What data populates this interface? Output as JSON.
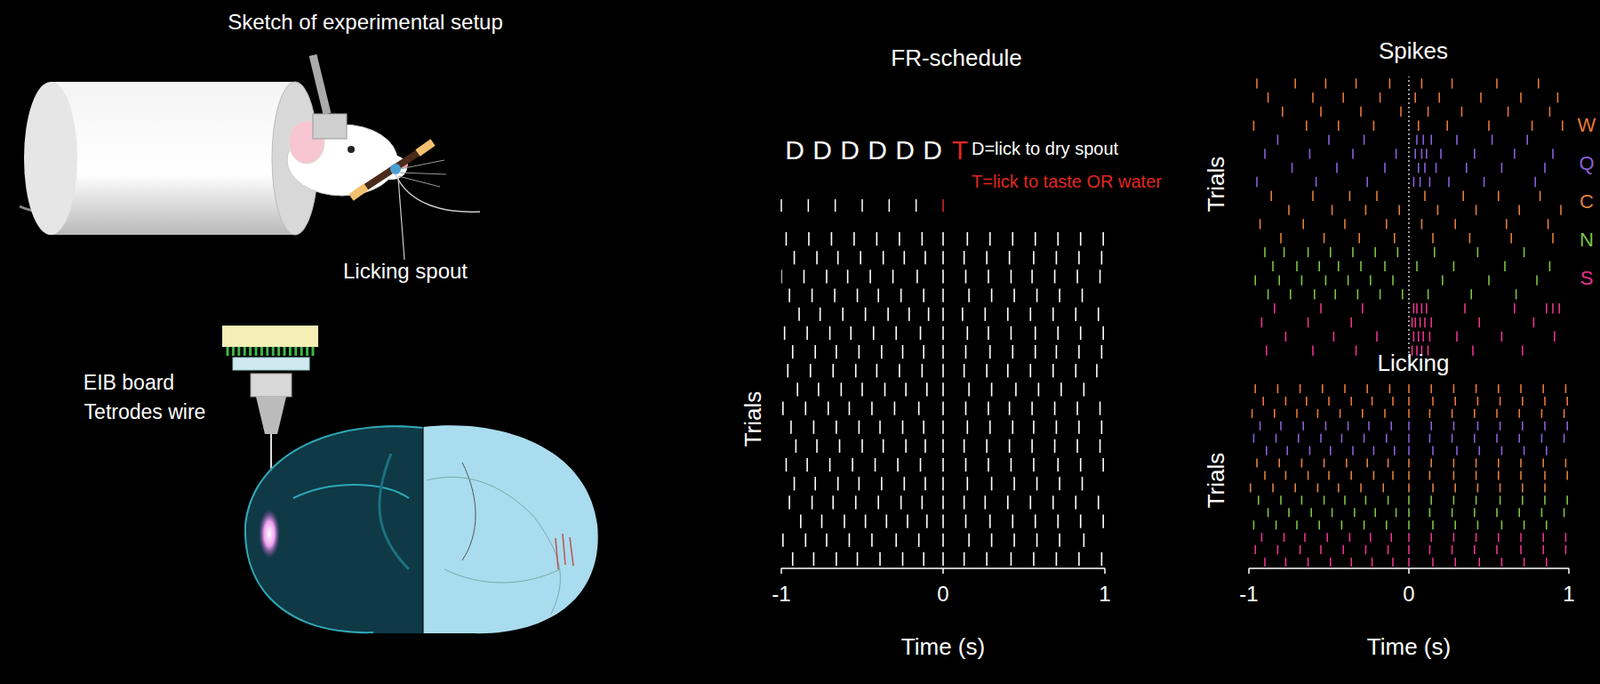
{
  "sketch": {
    "title": "Sketch of experimental setup",
    "labels": [
      "Licking spout",
      "EIB board",
      "Tetrodes wire"
    ]
  },
  "chart_data": [
    {
      "type": "raster",
      "title": "FR-schedule",
      "xlabel": "Time (s)",
      "ylabel": "Trials",
      "xlim": [
        -1,
        1
      ],
      "xticks": [
        -1,
        0,
        1
      ],
      "ylim": [
        0,
        18
      ],
      "tick_labels": "x",
      "color": "#ffffff",
      "schedule": {
        "sequence": [
          "D",
          "D",
          "D",
          "D",
          "D",
          "D",
          "T"
        ],
        "colors": [
          "#ffffff",
          "#ffffff",
          "#ffffff",
          "#ffffff",
          "#ffffff",
          "#ffffff",
          "#e0271f"
        ]
      },
      "annotations": [
        {
          "text": "D=lick to dry spout",
          "color": "#ffffff"
        },
        {
          "text": "T=lick to taste OR water",
          "color": "#e0271f"
        }
      ],
      "trials": [
        [
          -0.97,
          -0.83,
          -0.69,
          -0.55,
          -0.41,
          -0.27,
          -0.13,
          0,
          0.15,
          0.29,
          0.43,
          0.57,
          0.71,
          0.85,
          0.99
        ],
        [
          -0.92,
          -0.78,
          -0.65,
          -0.51,
          -0.37,
          -0.24,
          -0.11,
          0,
          0.13,
          0.27,
          0.41,
          0.56,
          0.7,
          0.84,
          0.98
        ],
        [
          -1.0,
          -0.86,
          -0.72,
          -0.59,
          -0.45,
          -0.31,
          -0.16,
          0,
          0.14,
          0.28,
          0.42,
          0.55,
          0.69,
          0.83,
          0.97
        ],
        [
          -0.95,
          -0.81,
          -0.67,
          -0.53,
          -0.4,
          -0.26,
          -0.12,
          0,
          0.16,
          0.3,
          0.44,
          0.58,
          0.72,
          0.86
        ],
        [
          -0.89,
          -0.76,
          -0.62,
          -0.48,
          -0.34,
          -0.21,
          -0.09,
          0,
          0.12,
          0.26,
          0.4,
          0.54,
          0.68,
          0.82,
          0.96
        ],
        [
          -0.98,
          -0.84,
          -0.7,
          -0.57,
          -0.43,
          -0.29,
          -0.14,
          0,
          0.15,
          0.28,
          0.42,
          0.57,
          0.71,
          0.85,
          0.99
        ],
        [
          -0.93,
          -0.79,
          -0.66,
          -0.52,
          -0.38,
          -0.25,
          -0.12,
          0,
          0.14,
          0.29,
          0.43,
          0.57,
          0.7,
          0.84,
          0.98
        ],
        [
          -0.96,
          -0.82,
          -0.68,
          -0.54,
          -0.41,
          -0.27,
          -0.13,
          0,
          0.13,
          0.27,
          0.4,
          0.54,
          0.68,
          0.82,
          0.95
        ],
        [
          -0.9,
          -0.77,
          -0.63,
          -0.5,
          -0.36,
          -0.23,
          -0.1,
          0,
          0.16,
          0.3,
          0.45,
          0.59,
          0.73,
          0.87
        ],
        [
          -0.99,
          -0.85,
          -0.71,
          -0.58,
          -0.44,
          -0.3,
          -0.15,
          0,
          0.14,
          0.28,
          0.41,
          0.55,
          0.69,
          0.83,
          0.97
        ],
        [
          -0.94,
          -0.8,
          -0.66,
          -0.52,
          -0.39,
          -0.25,
          -0.12,
          0,
          0.15,
          0.29,
          0.43,
          0.56,
          0.7,
          0.84,
          0.98
        ],
        [
          -0.91,
          -0.78,
          -0.64,
          -0.5,
          -0.37,
          -0.23,
          -0.11,
          0,
          0.13,
          0.27,
          0.41,
          0.55,
          0.69,
          0.83,
          0.97
        ],
        [
          -0.97,
          -0.84,
          -0.7,
          -0.56,
          -0.42,
          -0.28,
          -0.14,
          0,
          0.14,
          0.28,
          0.42,
          0.56,
          0.71,
          0.85,
          0.99
        ],
        [
          -0.92,
          -0.79,
          -0.65,
          -0.52,
          -0.38,
          -0.24,
          -0.11,
          0,
          0.15,
          0.3,
          0.44,
          0.58,
          0.72,
          0.86
        ],
        [
          -0.95,
          -0.81,
          -0.68,
          -0.54,
          -0.4,
          -0.26,
          -0.13,
          0,
          0.13,
          0.26,
          0.4,
          0.54,
          0.68,
          0.82,
          0.96
        ],
        [
          -0.88,
          -0.75,
          -0.61,
          -0.48,
          -0.35,
          -0.22,
          -0.1,
          0,
          0.14,
          0.29,
          0.43,
          0.57,
          0.71,
          0.85,
          0.99
        ],
        [
          -0.99,
          -0.85,
          -0.72,
          -0.58,
          -0.44,
          -0.29,
          -0.15,
          0,
          0.16,
          0.3,
          0.44,
          0.58,
          0.72,
          0.87
        ],
        [
          -0.93,
          -0.8,
          -0.66,
          -0.53,
          -0.39,
          -0.25,
          -0.12,
          0,
          0.13,
          0.27,
          0.42,
          0.56,
          0.7,
          0.84,
          0.98
        ]
      ]
    },
    {
      "type": "raster",
      "title": "Spikes",
      "ylabel": "Trials",
      "xlim": [
        -1,
        1
      ],
      "ylim": [
        0,
        20
      ],
      "tick_labels": false,
      "legend": "right",
      "event_time": 0,
      "series": [
        {
          "name": "W",
          "color": "#e8773a",
          "trials": [
            [
              -0.95,
              -0.71,
              -0.52,
              -0.33,
              -0.12,
              0.08,
              0.27,
              0.55,
              0.81
            ],
            [
              -0.88,
              -0.6,
              -0.41,
              -0.18,
              0.04,
              0.19,
              0.45,
              0.7,
              0.93
            ],
            [
              -0.79,
              -0.55,
              -0.3,
              -0.05,
              0.12,
              0.33,
              0.62,
              0.88
            ],
            [
              -0.97,
              -0.64,
              -0.44,
              -0.22,
              0.06,
              0.24,
              0.5,
              0.77,
              0.96
            ]
          ]
        },
        {
          "name": "Q",
          "color": "#8b5fd8",
          "trials": [
            [
              -0.82,
              -0.5,
              -0.28,
              0.05,
              0.09,
              0.14,
              0.3,
              0.52,
              0.74
            ],
            [
              -0.9,
              -0.62,
              -0.35,
              -0.08,
              0.04,
              0.08,
              0.11,
              0.2,
              0.41,
              0.66,
              0.9
            ],
            [
              -0.73,
              -0.45,
              -0.15,
              0.06,
              0.1,
              0.17,
              0.36,
              0.58,
              0.85
            ],
            [
              -0.95,
              -0.58,
              -0.26,
              0.03,
              0.07,
              0.13,
              0.25,
              0.47,
              0.79
            ]
          ]
        },
        {
          "name": "C",
          "color": "#e07f3c",
          "trials": [
            [
              -0.86,
              -0.6,
              -0.37,
              -0.2,
              0.1,
              0.34,
              0.56,
              0.82
            ],
            [
              -0.75,
              -0.48,
              -0.27,
              -0.06,
              0.18,
              0.42,
              0.69,
              0.95
            ],
            [
              -0.93,
              -0.66,
              -0.4,
              -0.14,
              0.08,
              0.29,
              0.61,
              0.87
            ],
            [
              -0.8,
              -0.53,
              -0.31,
              -0.09,
              0.15,
              0.38,
              0.64,
              0.9
            ]
          ]
        },
        {
          "name": "N",
          "color": "#7dc243",
          "trials": [
            [
              -0.9,
              -0.78,
              -0.63,
              -0.49,
              -0.35,
              -0.21,
              -0.07,
              0.16,
              0.43,
              0.72
            ],
            [
              -0.85,
              -0.7,
              -0.56,
              -0.44,
              -0.3,
              -0.15,
              0.05,
              0.28,
              0.6,
              0.88
            ],
            [
              -0.96,
              -0.81,
              -0.67,
              -0.52,
              -0.38,
              -0.24,
              -0.1,
              0.21,
              0.5,
              0.8
            ],
            [
              -0.88,
              -0.74,
              -0.59,
              -0.46,
              -0.32,
              -0.18,
              -0.04,
              0.12,
              0.39,
              0.67
            ]
          ]
        },
        {
          "name": "S",
          "color": "#e8338f",
          "trials": [
            [
              -0.84,
              -0.55,
              -0.29,
              0.03,
              0.05,
              0.08,
              0.11,
              0.35,
              0.66,
              0.86,
              0.9,
              0.94
            ],
            [
              -0.92,
              -0.63,
              -0.36,
              0.02,
              0.04,
              0.07,
              0.1,
              0.14,
              0.44,
              0.78
            ],
            [
              -0.77,
              -0.47,
              -0.2,
              0.03,
              0.06,
              0.09,
              0.13,
              0.3,
              0.58,
              0.91
            ],
            [
              -0.89,
              -0.6,
              -0.33,
              0.02,
              0.05,
              0.08,
              0.12,
              0.4,
              0.71
            ]
          ]
        }
      ]
    },
    {
      "type": "raster",
      "title": "Licking",
      "xlabel": "Time (s)",
      "ylabel": "Trials",
      "xlim": [
        -1,
        1
      ],
      "xticks": [
        -1,
        0,
        1
      ],
      "ylim": [
        0,
        15
      ],
      "tick_labels": "x",
      "series": [
        {
          "color": "#e8773a",
          "trials": [
            [
              -0.96,
              -0.82,
              -0.68,
              -0.54,
              -0.4,
              -0.26,
              -0.12,
              0,
              0.14,
              0.28,
              0.42,
              0.56,
              0.7,
              0.84,
              0.98
            ],
            [
              -0.91,
              -0.77,
              -0.64,
              -0.5,
              -0.36,
              -0.23,
              -0.1,
              0,
              0.15,
              0.29,
              0.43,
              0.57,
              0.71,
              0.85,
              0.99
            ],
            [
              -0.98,
              -0.84,
              -0.7,
              -0.57,
              -0.43,
              -0.29,
              -0.15,
              0,
              0.13,
              0.27,
              0.41,
              0.55,
              0.69,
              0.83,
              0.97
            ]
          ]
        },
        {
          "color": "#8b5fd8",
          "trials": [
            [
              -0.93,
              -0.8,
              -0.66,
              -0.52,
              -0.38,
              -0.25,
              -0.11,
              0,
              0.14,
              0.28,
              0.43,
              0.57,
              0.71,
              0.85,
              0.99
            ],
            [
              -0.97,
              -0.83,
              -0.69,
              -0.55,
              -0.42,
              -0.28,
              -0.14,
              0,
              0.13,
              0.27,
              0.41,
              0.55,
              0.69,
              0.83,
              0.97
            ],
            [
              -0.89,
              -0.76,
              -0.62,
              -0.49,
              -0.35,
              -0.22,
              -0.09,
              0,
              0.15,
              0.3,
              0.44,
              0.58,
              0.72,
              0.86
            ]
          ]
        },
        {
          "color": "#e07f3c",
          "trials": [
            [
              -0.95,
              -0.81,
              -0.67,
              -0.53,
              -0.39,
              -0.26,
              -0.13,
              0,
              0.14,
              0.28,
              0.42,
              0.56,
              0.7,
              0.84,
              0.98
            ],
            [
              -0.9,
              -0.77,
              -0.63,
              -0.5,
              -0.36,
              -0.22,
              -0.1,
              0,
              0.13,
              0.28,
              0.42,
              0.56,
              0.7,
              0.85,
              0.99
            ],
            [
              -0.99,
              -0.85,
              -0.71,
              -0.57,
              -0.44,
              -0.3,
              -0.16,
              0,
              0.15,
              0.29,
              0.43,
              0.57,
              0.71,
              0.85
            ]
          ]
        },
        {
          "color": "#7dc243",
          "trials": [
            [
              -0.94,
              -0.8,
              -0.67,
              -0.53,
              -0.4,
              -0.27,
              -0.13,
              0,
              0.14,
              0.28,
              0.42,
              0.57,
              0.71,
              0.85,
              0.99
            ],
            [
              -0.88,
              -0.75,
              -0.61,
              -0.48,
              -0.34,
              -0.21,
              -0.08,
              0,
              0.13,
              0.27,
              0.41,
              0.55,
              0.69,
              0.83,
              0.97
            ],
            [
              -0.97,
              -0.83,
              -0.7,
              -0.56,
              -0.42,
              -0.28,
              -0.14,
              0,
              0.15,
              0.29,
              0.43,
              0.58,
              0.72,
              0.86
            ]
          ]
        },
        {
          "color": "#e8338f",
          "trials": [
            [
              -0.92,
              -0.78,
              -0.65,
              -0.51,
              -0.37,
              -0.24,
              -0.11,
              0,
              0.14,
              0.28,
              0.42,
              0.56,
              0.7,
              0.84,
              0.98
            ],
            [
              -0.96,
              -0.82,
              -0.68,
              -0.55,
              -0.41,
              -0.27,
              -0.13,
              0,
              0.13,
              0.27,
              0.41,
              0.55,
              0.7,
              0.84,
              0.98
            ],
            [
              -0.9,
              -0.77,
              -0.63,
              -0.49,
              -0.36,
              -0.23,
              -0.1,
              0,
              0.15,
              0.29,
              0.44,
              0.58,
              0.72,
              0.86
            ]
          ]
        }
      ]
    }
  ]
}
